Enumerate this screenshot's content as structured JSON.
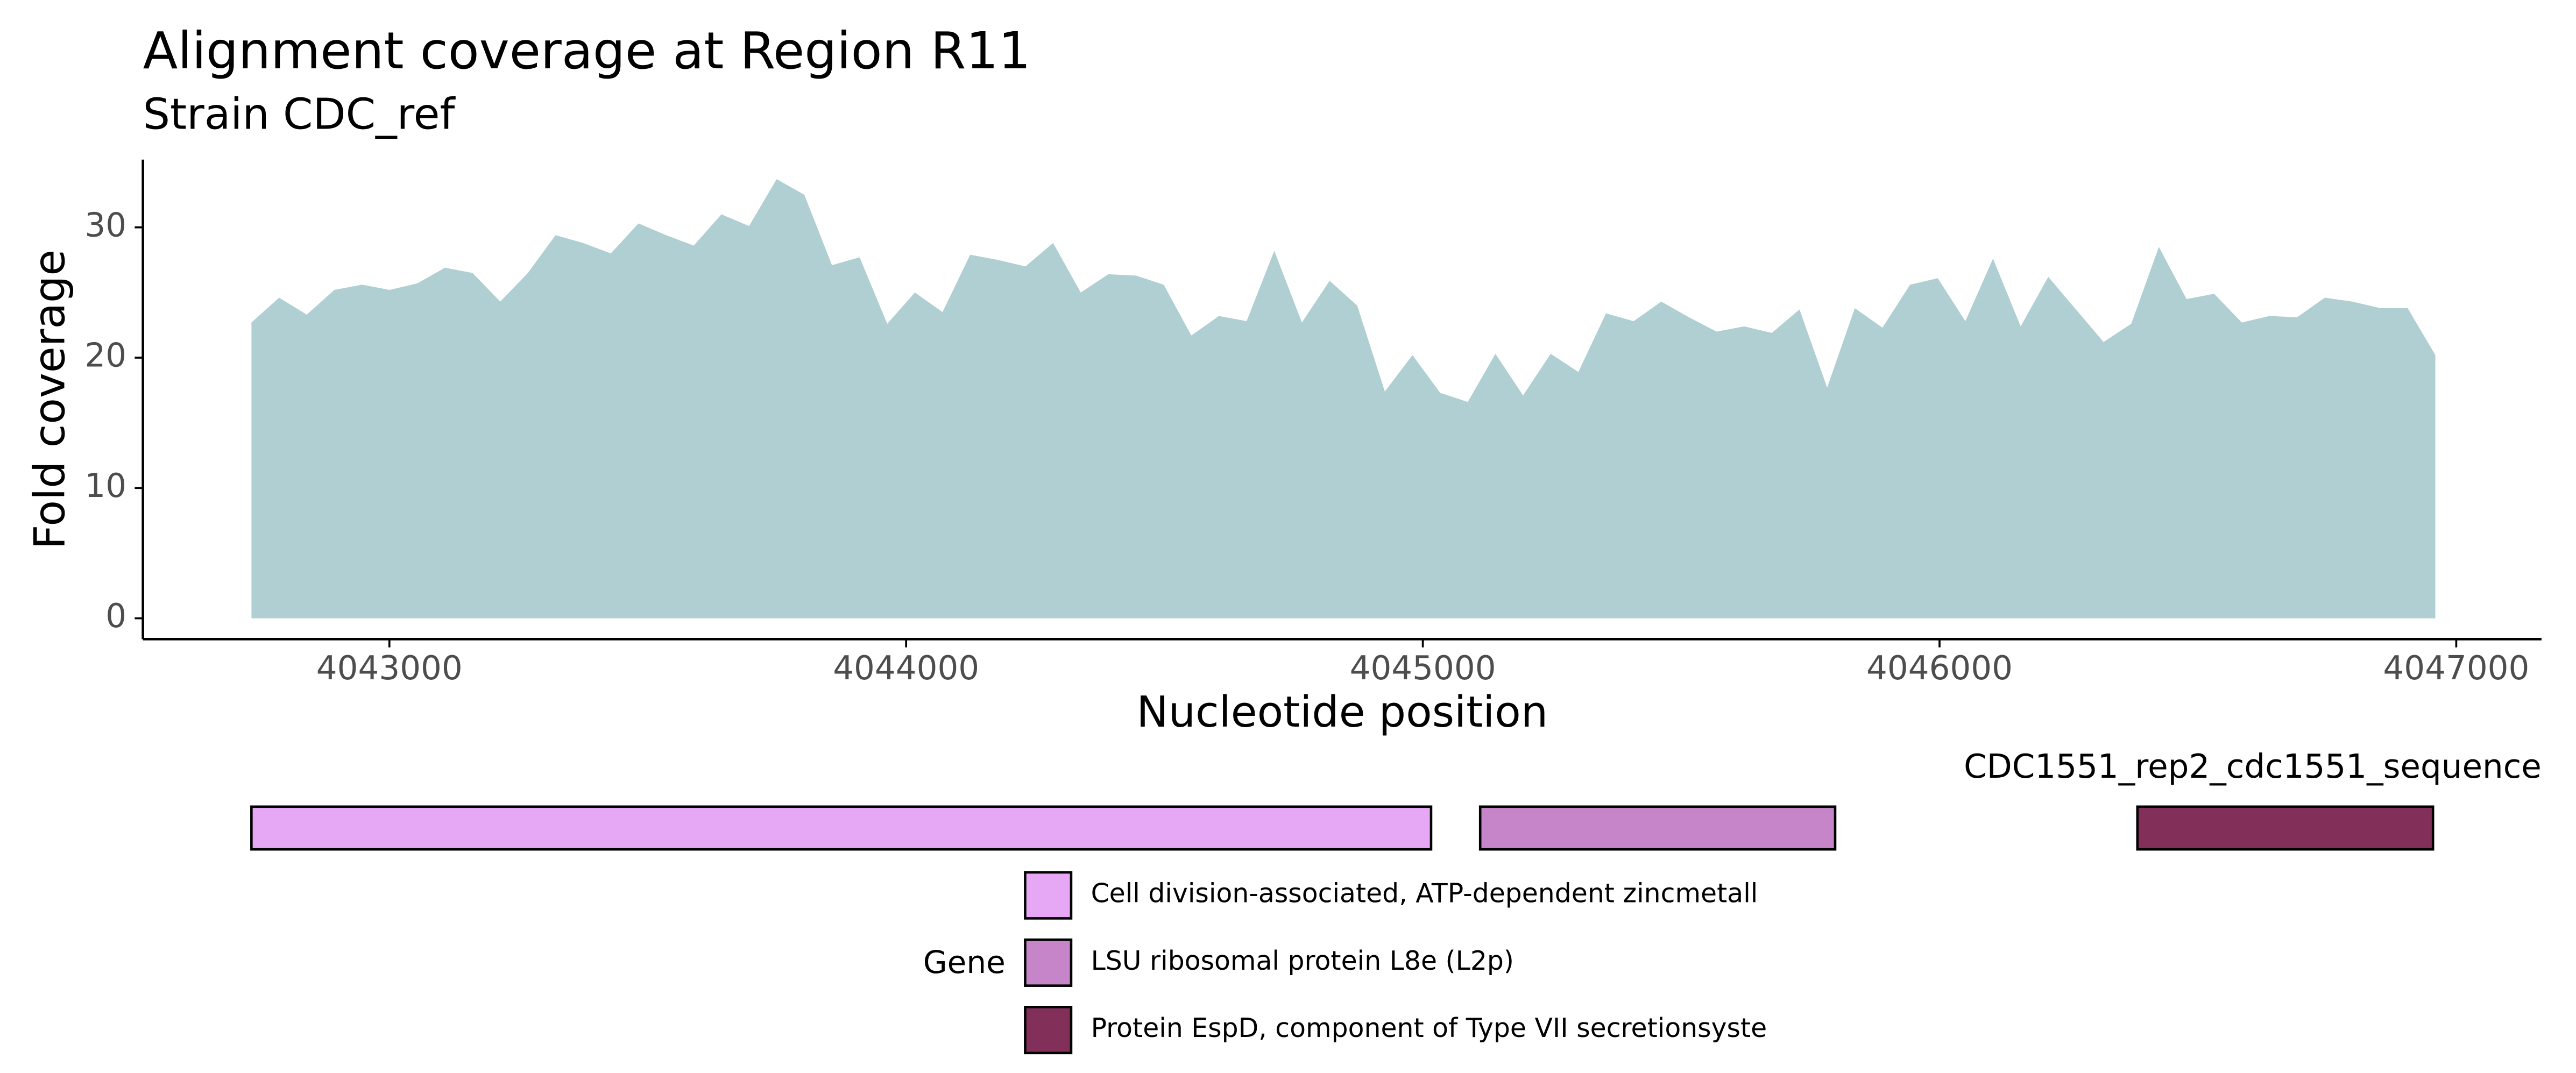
{
  "chart_data": [
    {
      "type": "area",
      "title": "Alignment coverage at Region R11",
      "subtitle": "Strain CDC_ref",
      "x_label": "Nucleotide position",
      "y_label": "Fold coverage",
      "color": "#b0cfd2",
      "x": [
        4042733,
        4042786.5,
        4042840,
        4042893.5,
        4042947,
        4043000.5,
        4043054,
        4043107.5,
        4043161,
        4043214.5,
        4043268,
        4043321.5,
        4043375,
        4043428.5,
        4043482,
        4043535.5,
        4043589,
        4043642.5,
        4043696,
        4043749.5,
        4043803,
        4043856.5,
        4043910,
        4043963.5,
        4044017,
        4044070.5,
        4044124,
        4044177.5,
        4044231,
        4044284.5,
        4044338,
        4044391.5,
        4044445,
        4044498.5,
        4044552,
        4044605.5,
        4044659,
        4044712.5,
        4044766,
        4044819.5,
        4044873,
        4044926.5,
        4044980,
        4045033.5,
        4045087,
        4045140.5,
        4045194,
        4045247.5,
        4045301,
        4045354.5,
        4045408,
        4045461.5,
        4045515,
        4045568.5,
        4045622,
        4045675.5,
        4045729,
        4045782.5,
        4045836,
        4045889.5,
        4045943,
        4045996.5,
        4046050,
        4046103.5,
        4046157,
        4046210.5,
        4046264,
        4046317.5,
        4046371,
        4046424.5,
        4046478,
        4046531.5,
        4046585,
        4046638.5,
        4046692,
        4046745.5,
        4046799,
        4046852.5,
        4046906,
        4046959.5
      ],
      "values": [
        22.7,
        24.6,
        23.3,
        25.2,
        25.6,
        25.2,
        25.7,
        26.9,
        26.5,
        24.3,
        26.5,
        29.4,
        28.8,
        28.0,
        30.3,
        29.4,
        28.6,
        31.0,
        30.1,
        33.7,
        32.5,
        27.1,
        27.7,
        22.6,
        25.0,
        23.5,
        27.9,
        27.5,
        27.0,
        28.8,
        25.0,
        26.4,
        26.3,
        25.6,
        21.7,
        23.2,
        22.8,
        28.2,
        22.7,
        25.9,
        24.0,
        17.4,
        20.2,
        17.3,
        16.6,
        20.3,
        17.1,
        20.3,
        18.9,
        23.4,
        22.8,
        24.3,
        23.1,
        22.0,
        22.4,
        21.9,
        23.7,
        17.7,
        23.8,
        22.3,
        25.6,
        26.1,
        22.8,
        27.6,
        22.4,
        26.2,
        23.7,
        21.2,
        22.6,
        28.5,
        24.5,
        24.9,
        22.7,
        23.2,
        23.1,
        24.6,
        24.3,
        23.8,
        23.8,
        20.2
      ],
      "xlim": [
        4042523,
        4047165
      ],
      "xticks": [
        4043000,
        4044000,
        4045000,
        4046000,
        4047000
      ],
      "ylim": [
        -1.6,
        35.2
      ],
      "yticks": [
        0,
        10,
        20,
        30
      ],
      "grid": false
    },
    {
      "type": "gene-track",
      "label": "CDC1551_rep2_cdc1551_sequence",
      "legend_title": "Gene",
      "xlim": [
        4042523,
        4047165
      ],
      "genes": [
        {
          "name": "Cell division-associated, ATP-dependent zincmetall",
          "start": 4042733,
          "end": 4045016,
          "color": "#e6a8f5"
        },
        {
          "name": "LSU ribosomal protein L8e (L2p)",
          "start": 4045111,
          "end": 4045798,
          "color": "#c685c9"
        },
        {
          "name": "Protein EspD, component of Type VII secretionsyste",
          "start": 4046383,
          "end": 4046955,
          "color": "#822f5a"
        }
      ]
    }
  ]
}
